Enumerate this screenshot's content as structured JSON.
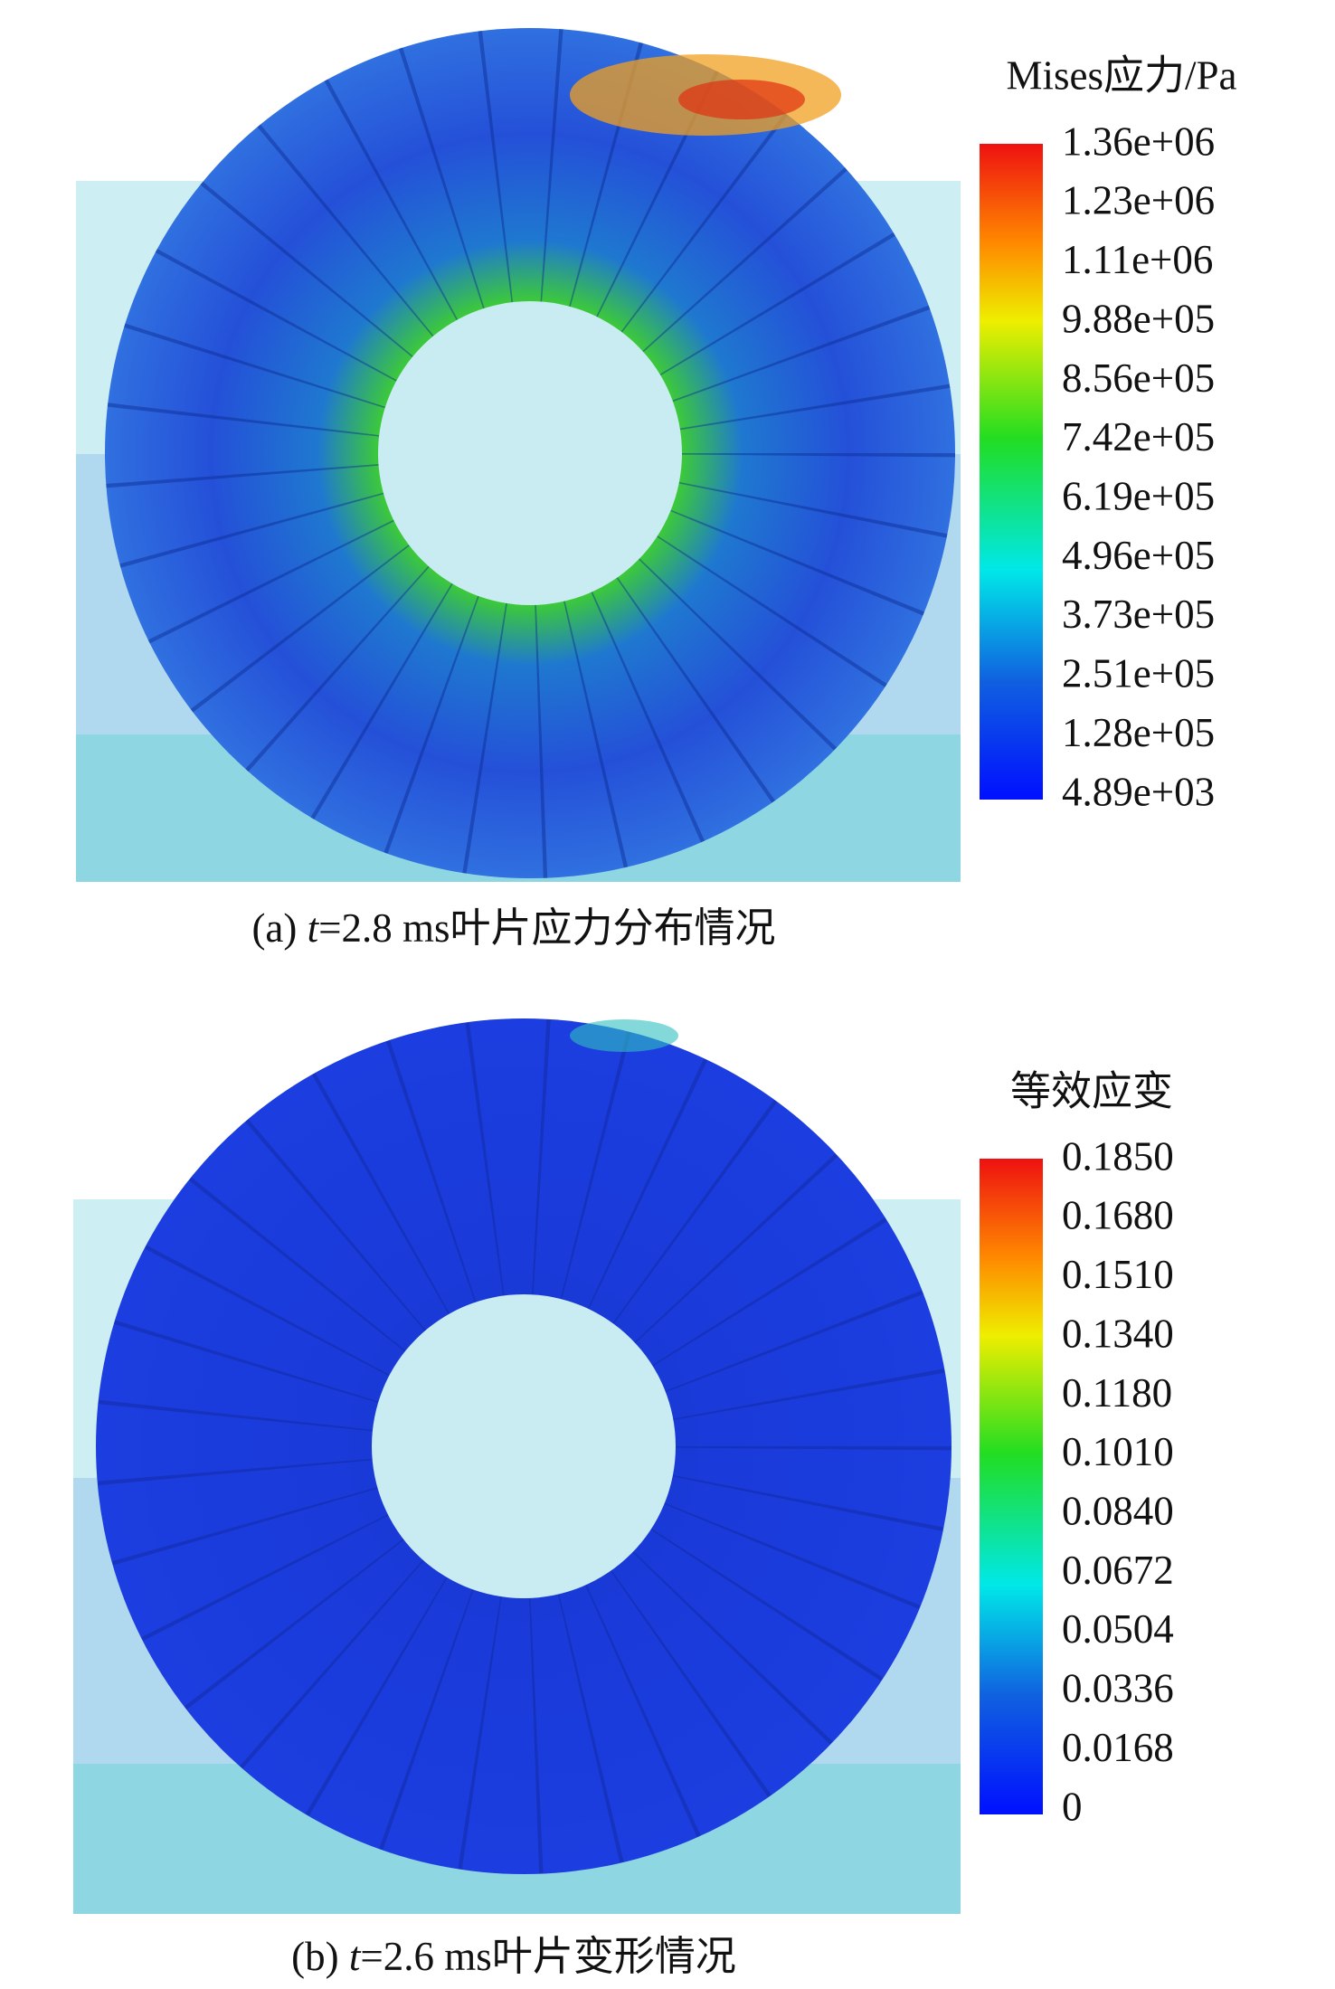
{
  "panels": [
    {
      "legend": {
        "title": "Mises应力/Pa",
        "ticks": [
          "1.36e+06",
          "1.23e+06",
          "1.11e+06",
          "9.88e+05",
          "8.56e+05",
          "7.42e+05",
          "6.19e+05",
          "4.96e+05",
          "3.73e+05",
          "2.51e+05",
          "1.28e+05",
          "4.89e+03"
        ]
      },
      "caption": {
        "label": "(a) ",
        "italic": "t",
        "rest": "=2.8 ms叶片应力分布情况"
      }
    },
    {
      "legend": {
        "title": "等效应变",
        "ticks": [
          "0.1850",
          "0.1680",
          "0.1510",
          "0.1340",
          "0.1180",
          "0.1010",
          "0.0840",
          "0.0672",
          "0.0504",
          "0.0336",
          "0.0168",
          "0"
        ]
      },
      "caption": {
        "label": "(b) ",
        "italic": "t",
        "rest": "=2.6 ms叶片变形情况"
      }
    }
  ]
}
